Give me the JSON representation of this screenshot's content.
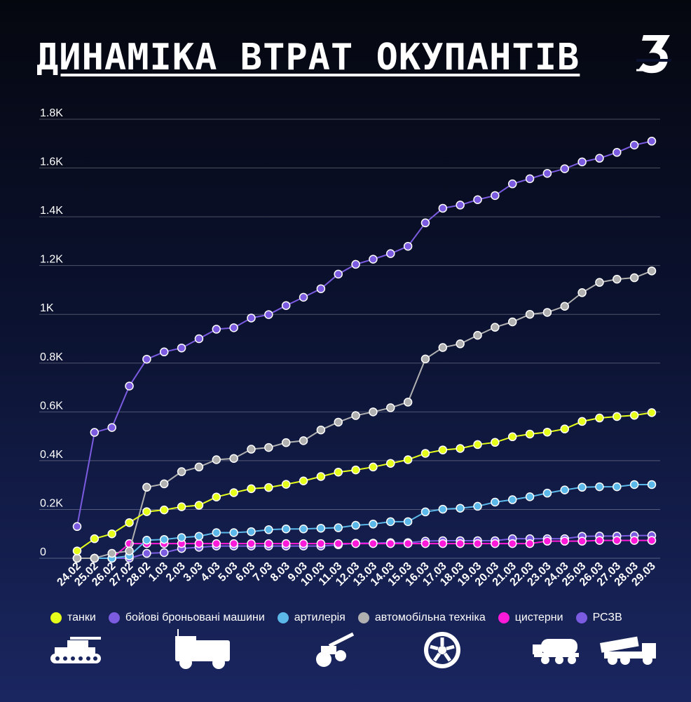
{
  "header": {
    "title": "ДИНАМІКА ВТРАТ ОКУПАНТІВ"
  },
  "chart_data": {
    "type": "line",
    "title": "ДИНАМІКА ВТРАТ ОКУПАНТІВ",
    "xlabel": "",
    "ylabel": "",
    "ylim": [
      0,
      1800
    ],
    "yticks": [
      0,
      200,
      400,
      600,
      800,
      1000,
      1200,
      1400,
      1600,
      1800
    ],
    "ytick_labels": [
      "0",
      "0.2K",
      "0.4K",
      "0.6K",
      "0.8K",
      "1K",
      "1.2K",
      "1.4K",
      "1.6K",
      "1.8K"
    ],
    "grid": true,
    "legend_position": "bottom",
    "x": [
      "24.02",
      "25.02",
      "26.02",
      "27.02",
      "28.02",
      "1.03",
      "2.03",
      "3.03",
      "4.03",
      "5.03",
      "6.03",
      "7.03",
      "8.03",
      "9.03",
      "10.03",
      "11.03",
      "12.03",
      "13.03",
      "14.03",
      "15.03",
      "16.03",
      "17.03",
      "18.03",
      "19.03",
      "20.03",
      "21.03",
      "22.03",
      "23.03",
      "24.03",
      "25.03",
      "26.03",
      "27.03",
      "28.03",
      "29.03"
    ],
    "series": [
      {
        "name": "танки",
        "color": "#e6ff1a",
        "values": [
          30,
          80,
          100,
          146,
          191,
          198,
          211,
          217,
          251,
          269,
          285,
          290,
          303,
          317,
          335,
          353,
          362,
          374,
          389,
          404,
          430,
          444,
          450,
          466,
          475,
          498,
          509,
          517,
          530,
          561,
          575,
          581,
          586,
          597
        ]
      },
      {
        "name": "бойові броньовані машини",
        "color": "#7b5be0",
        "values": [
          130,
          516,
          536,
          706,
          816,
          846,
          862,
          900,
          939,
          945,
          985,
          999,
          1036,
          1070,
          1105,
          1165,
          1205,
          1226,
          1249,
          1279,
          1375,
          1435,
          1448,
          1470,
          1487,
          1535,
          1556,
          1578,
          1597,
          1625,
          1640,
          1664,
          1694,
          1710
        ]
      },
      {
        "name": "артилерія",
        "color": "#5bb8e8",
        "values": [
          0,
          0,
          0,
          10,
          74,
          77,
          85,
          90,
          105,
          105,
          109,
          117,
          120,
          120,
          123,
          125,
          135,
          140,
          150,
          150,
          190,
          201,
          205,
          213,
          230,
          240,
          252,
          267,
          280,
          291,
          293,
          293,
          302,
          302
        ]
      },
      {
        "name": "автомобільна техніка",
        "color": "#b0b0b0",
        "values": [
          0,
          0,
          20,
          30,
          291,
          305,
          355,
          374,
          404,
          409,
          447,
          454,
          474,
          482,
          526,
          558,
          585,
          600,
          617,
          640,
          817,
          864,
          879,
          914,
          947,
          969,
          1000,
          1008,
          1033,
          1089,
          1131,
          1144,
          1150,
          1178
        ]
      },
      {
        "name": "цистерни",
        "color": "#ff1ad9",
        "values": [
          0,
          0,
          0,
          60,
          60,
          60,
          60,
          60,
          60,
          60,
          60,
          60,
          60,
          60,
          60,
          60,
          60,
          60,
          60,
          60,
          60,
          60,
          60,
          60,
          60,
          60,
          60,
          70,
          70,
          70,
          73,
          73,
          73,
          73
        ]
      },
      {
        "name": "РСЗВ",
        "color": "#7b5be0",
        "values": [
          0,
          0,
          0,
          0,
          20,
          23,
          40,
          45,
          50,
          50,
          50,
          50,
          50,
          50,
          50,
          55,
          62,
          62,
          64,
          64,
          70,
          72,
          72,
          72,
          72,
          80,
          80,
          80,
          80,
          90,
          91,
          91,
          93,
          93
        ]
      }
    ]
  }
}
